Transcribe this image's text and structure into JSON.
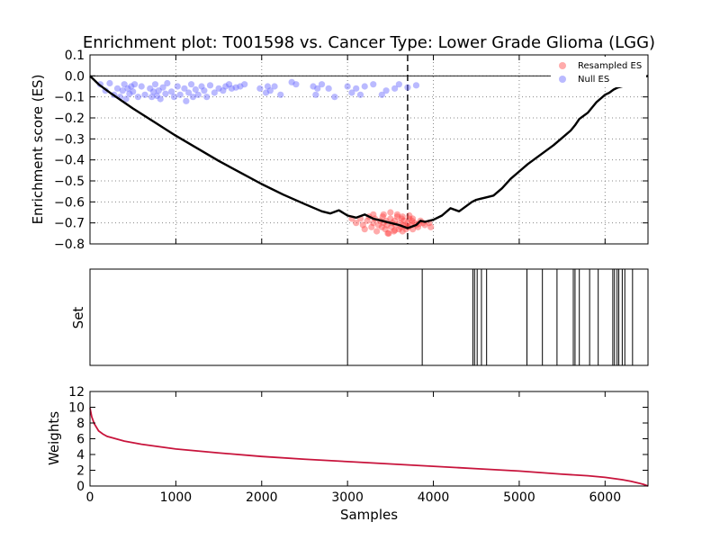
{
  "chart_data": [
    {
      "type": "line+scatter",
      "title": "Enrichment plot: T001598 vs. Cancer Type: Lower Grade Glioma (LGG)",
      "xlabel": "",
      "ylabel": "Enrichment score (ES)",
      "xlim": [
        0,
        6500
      ],
      "ylim": [
        -0.8,
        0.1
      ],
      "yticks": [
        0.1,
        0.0,
        -0.1,
        -0.2,
        -0.3,
        -0.4,
        -0.5,
        -0.6,
        -0.7,
        -0.8
      ],
      "ytick_labels": [
        "0.1",
        "0.0",
        "−0.1",
        "−0.2",
        "−0.3",
        "−0.4",
        "−0.5",
        "−0.6",
        "−0.7",
        "−0.8"
      ],
      "xticks": [
        0,
        1000,
        2000,
        3000,
        4000,
        5000,
        6000
      ],
      "grid": true,
      "legend_position": "top-right",
      "legend": [
        "Resampled ES",
        "Null ES"
      ],
      "vline_x": 3700,
      "hline_y": 0.0,
      "running_es": {
        "x": [
          0,
          100,
          250,
          500,
          750,
          1000,
          1250,
          1500,
          1750,
          2000,
          2250,
          2500,
          2700,
          2800,
          2900,
          3000,
          3100,
          3200,
          3300,
          3400,
          3500,
          3600,
          3700,
          3800,
          3850,
          3900,
          4000,
          4100,
          4200,
          4300,
          4400,
          4450,
          4500,
          4550,
          4600,
          4700,
          4800,
          4900,
          5000,
          5100,
          5200,
          5300,
          5400,
          5500,
          5600,
          5650,
          5700,
          5800,
          5900,
          6000,
          6050,
          6100,
          6150,
          6200,
          6250,
          6300,
          6350,
          6400,
          6450,
          6500
        ],
        "y": [
          0.0,
          -0.04,
          -0.085,
          -0.155,
          -0.22,
          -0.285,
          -0.345,
          -0.405,
          -0.46,
          -0.515,
          -0.565,
          -0.61,
          -0.645,
          -0.655,
          -0.64,
          -0.665,
          -0.675,
          -0.66,
          -0.68,
          -0.69,
          -0.7,
          -0.71,
          -0.725,
          -0.71,
          -0.69,
          -0.695,
          -0.685,
          -0.665,
          -0.63,
          -0.645,
          -0.615,
          -0.6,
          -0.59,
          -0.585,
          -0.58,
          -0.57,
          -0.535,
          -0.49,
          -0.455,
          -0.42,
          -0.39,
          -0.36,
          -0.33,
          -0.295,
          -0.26,
          -0.235,
          -0.205,
          -0.175,
          -0.125,
          -0.09,
          -0.08,
          -0.065,
          -0.055,
          -0.05,
          -0.035,
          -0.02,
          -0.015,
          -0.01,
          -0.005,
          0.0
        ]
      },
      "null_es": {
        "x": [
          120,
          180,
          230,
          280,
          320,
          350,
          380,
          400,
          420,
          440,
          460,
          480,
          500,
          520,
          560,
          600,
          640,
          700,
          720,
          740,
          760,
          780,
          800,
          820,
          850,
          880,
          900,
          950,
          980,
          1020,
          1050,
          1100,
          1120,
          1150,
          1180,
          1200,
          1230,
          1260,
          1300,
          1330,
          1360,
          1400,
          1450,
          1500,
          1550,
          1580,
          1620,
          1650,
          1700,
          1750,
          1800,
          1980,
          2050,
          2070,
          2100,
          2150,
          2220,
          2350,
          2400,
          2600,
          2630,
          2650,
          2700,
          2780,
          2850,
          3000,
          3050,
          3100,
          3150,
          3200,
          3300,
          3400,
          3450,
          3550,
          3600,
          3700,
          3800
        ],
        "y": [
          -0.04,
          -0.07,
          -0.035,
          -0.09,
          -0.06,
          -0.1,
          -0.07,
          -0.04,
          -0.11,
          -0.06,
          -0.085,
          -0.05,
          -0.075,
          -0.04,
          -0.1,
          -0.05,
          -0.09,
          -0.06,
          -0.1,
          -0.075,
          -0.04,
          -0.095,
          -0.07,
          -0.11,
          -0.055,
          -0.085,
          -0.035,
          -0.075,
          -0.1,
          -0.05,
          -0.09,
          -0.06,
          -0.12,
          -0.08,
          -0.04,
          -0.1,
          -0.065,
          -0.09,
          -0.05,
          -0.07,
          -0.1,
          -0.045,
          -0.08,
          -0.06,
          -0.07,
          -0.05,
          -0.04,
          -0.06,
          -0.055,
          -0.05,
          -0.04,
          -0.06,
          -0.08,
          -0.05,
          -0.07,
          -0.05,
          -0.09,
          -0.03,
          -0.04,
          -0.05,
          -0.09,
          -0.06,
          -0.04,
          -0.06,
          -0.1,
          -0.05,
          -0.08,
          -0.06,
          -0.09,
          -0.05,
          -0.04,
          -0.09,
          -0.07,
          -0.06,
          -0.04,
          -0.055,
          -0.045
        ]
      },
      "resampled_es": {
        "x": [
          3050,
          3100,
          3150,
          3180,
          3200,
          3230,
          3250,
          3280,
          3300,
          3320,
          3340,
          3360,
          3380,
          3400,
          3410,
          3420,
          3440,
          3450,
          3460,
          3480,
          3500,
          3510,
          3520,
          3540,
          3550,
          3560,
          3580,
          3600,
          3610,
          3620,
          3630,
          3640,
          3650,
          3660,
          3680,
          3700,
          3710,
          3720,
          3740,
          3750,
          3760,
          3780,
          3800,
          3820,
          3850,
          3880,
          3900,
          3950,
          3970,
          3300,
          3420,
          3500,
          3580,
          3640,
          3720,
          3760,
          3830,
          3470,
          3550,
          3680
        ],
        "y": [
          -0.68,
          -0.7,
          -0.68,
          -0.71,
          -0.73,
          -0.69,
          -0.67,
          -0.72,
          -0.7,
          -0.68,
          -0.74,
          -0.71,
          -0.69,
          -0.72,
          -0.67,
          -0.7,
          -0.73,
          -0.69,
          -0.71,
          -0.75,
          -0.68,
          -0.72,
          -0.7,
          -0.74,
          -0.69,
          -0.71,
          -0.67,
          -0.73,
          -0.7,
          -0.72,
          -0.68,
          -0.74,
          -0.71,
          -0.69,
          -0.73,
          -0.7,
          -0.72,
          -0.68,
          -0.71,
          -0.69,
          -0.73,
          -0.7,
          -0.71,
          -0.72,
          -0.69,
          -0.7,
          -0.71,
          -0.7,
          -0.72,
          -0.66,
          -0.66,
          -0.65,
          -0.66,
          -0.67,
          -0.665,
          -0.68,
          -0.705,
          -0.75,
          -0.735,
          -0.715
        ]
      }
    },
    {
      "type": "barcode",
      "title": "",
      "xlabel": "",
      "ylabel": "Set",
      "xlim": [
        0,
        6500
      ],
      "set_positions": [
        3000,
        3870,
        4460,
        4480,
        4510,
        4560,
        4620,
        5090,
        5270,
        5440,
        5630,
        5650,
        5700,
        5820,
        5920,
        6090,
        6110,
        6140,
        6160,
        6200,
        6230,
        6320
      ]
    },
    {
      "type": "line",
      "title": "",
      "xlabel": "Samples",
      "ylabel": "Weights",
      "xlim": [
        0,
        6500
      ],
      "ylim": [
        0,
        12
      ],
      "xticks": [
        0,
        1000,
        2000,
        3000,
        4000,
        5000,
        6000
      ],
      "yticks": [
        0,
        2,
        4,
        6,
        8,
        10,
        12
      ],
      "x": [
        0,
        20,
        50,
        100,
        150,
        200,
        300,
        400,
        600,
        800,
        1000,
        1500,
        2000,
        2500,
        3000,
        3500,
        4000,
        4500,
        5000,
        5500,
        5800,
        6000,
        6200,
        6300,
        6400,
        6450,
        6500
      ],
      "y": [
        9.9,
        8.8,
        7.9,
        7.0,
        6.6,
        6.3,
        6.0,
        5.7,
        5.3,
        5.0,
        4.7,
        4.2,
        3.75,
        3.4,
        3.1,
        2.8,
        2.5,
        2.2,
        1.9,
        1.5,
        1.3,
        1.1,
        0.8,
        0.6,
        0.35,
        0.2,
        0.0
      ]
    }
  ],
  "colors": {
    "running_es": "#000000",
    "null_es": "#6666ff",
    "resampled_es": "#ff4444",
    "weights": "#c8143c",
    "grid": "#888888"
  }
}
